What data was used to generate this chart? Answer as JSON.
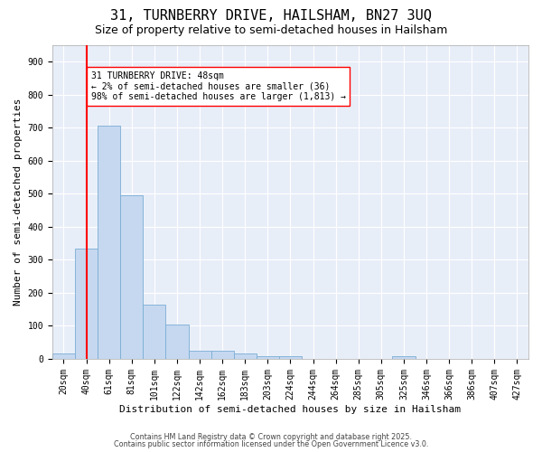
{
  "title": "31, TURNBERRY DRIVE, HAILSHAM, BN27 3UQ",
  "subtitle": "Size of property relative to semi-detached houses in Hailsham",
  "xlabel": "Distribution of semi-detached houses by size in Hailsham",
  "ylabel": "Number of semi-detached properties",
  "categories": [
    "20sqm",
    "40sqm",
    "61sqm",
    "81sqm",
    "101sqm",
    "122sqm",
    "142sqm",
    "162sqm",
    "183sqm",
    "203sqm",
    "224sqm",
    "244sqm",
    "264sqm",
    "285sqm",
    "305sqm",
    "325sqm",
    "346sqm",
    "366sqm",
    "386sqm",
    "407sqm",
    "427sqm"
  ],
  "values": [
    15,
    335,
    705,
    495,
    165,
    105,
    25,
    25,
    15,
    8,
    8,
    0,
    0,
    0,
    0,
    8,
    0,
    0,
    0,
    0,
    0
  ],
  "bar_color": "#c5d8f0",
  "bar_edge_color": "#7aadd4",
  "red_line_x": 1,
  "annotation_text": "31 TURNBERRY DRIVE: 48sqm\n← 2% of semi-detached houses are smaller (36)\n98% of semi-detached houses are larger (1,813) →",
  "ylim": [
    0,
    950
  ],
  "yticks": [
    0,
    100,
    200,
    300,
    400,
    500,
    600,
    700,
    800,
    900
  ],
  "bg_color": "#e8eef8",
  "grid_color": "#ffffff",
  "title_fontsize": 11,
  "subtitle_fontsize": 9,
  "xlabel_fontsize": 8,
  "ylabel_fontsize": 8,
  "tick_fontsize": 7,
  "annotation_fontsize": 7,
  "footer_line1": "Contains HM Land Registry data © Crown copyright and database right 2025.",
  "footer_line2": "Contains public sector information licensed under the Open Government Licence v3.0."
}
